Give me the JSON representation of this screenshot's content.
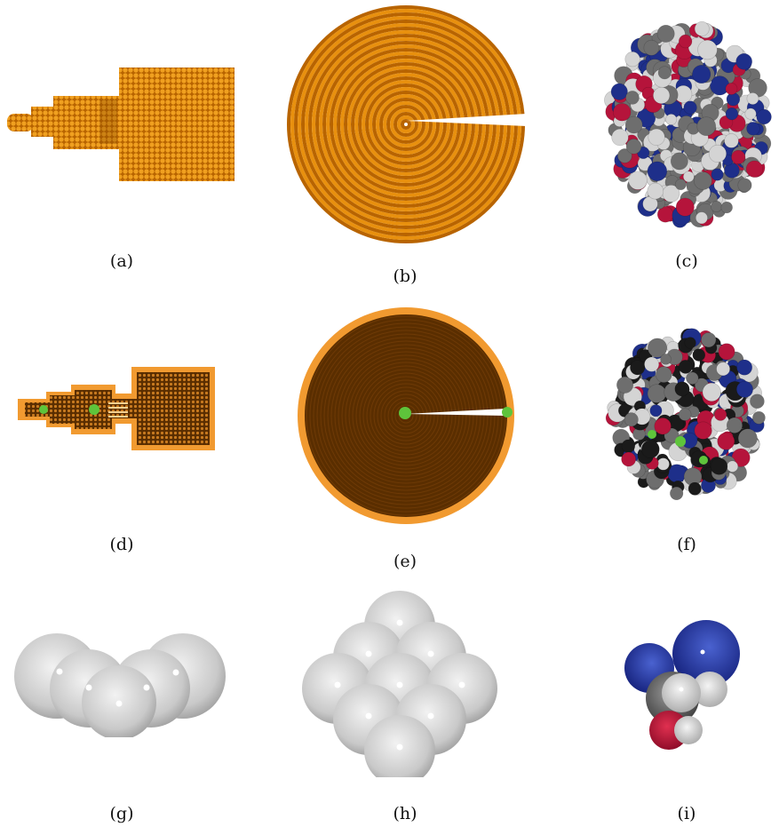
{
  "figure": {
    "captions": {
      "a": "(a)",
      "b": "(b)",
      "c": "(c)",
      "d": "(d)",
      "e": "(e)",
      "f": "(f)",
      "g": "(g)",
      "h": "(h)",
      "i": "(i)"
    },
    "colors": {
      "orange": "#e8900e",
      "orange_dark": "#b86400",
      "cavity_brown": "#5a2e00",
      "marker_green": "#5ec43b",
      "atom_white": "#d4d4d4",
      "atom_grey": "#6e6e6e",
      "atom_red": "#b5143b",
      "atom_blue": "#1e2f8a"
    }
  }
}
